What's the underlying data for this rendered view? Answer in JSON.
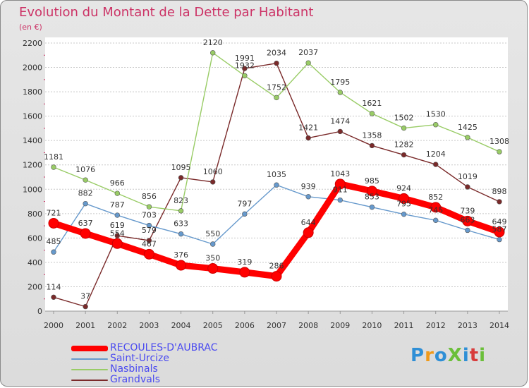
{
  "title": "Evolution du Montant de la Dette par Habitant",
  "subtitle": "(en €)",
  "logo": {
    "text": "ProXiti",
    "colors": [
      "#2f8fd6",
      "#f09a1a",
      "#2f8fd6",
      "#6bbf3a",
      "#2f8fd6",
      "#d83c3c",
      "#6bbf3a"
    ]
  },
  "chart_data": {
    "type": "line",
    "x": [
      "2000",
      "2001",
      "2002",
      "2003",
      "2004",
      "2005",
      "2006",
      "2007",
      "2008",
      "2009",
      "2010",
      "2011",
      "2012",
      "2013",
      "2014"
    ],
    "ylim": [
      0,
      2200
    ],
    "yticks": [
      0,
      200,
      400,
      600,
      800,
      1000,
      1200,
      1400,
      1600,
      1800,
      2000,
      2200
    ],
    "grid": true,
    "legend_position": "bottom",
    "series": [
      {
        "name": "RECOULES-D'AUBRAC",
        "color": "#ff0000",
        "values": [
          721,
          637,
          554,
          467,
          376,
          350,
          319,
          286,
          644,
          1043,
          985,
          924,
          852,
          739,
          649
        ],
        "labels": [
          "721",
          "637",
          "554",
          "467",
          "376",
          "350",
          "319",
          "286",
          "644",
          "1043",
          "985",
          "924",
          "852",
          "739",
          "649"
        ]
      },
      {
        "name": "Saint-Urcize",
        "color": "#6699cc",
        "values": [
          485,
          882,
          787,
          703,
          633,
          550,
          797,
          1035,
          939,
          911,
          853,
          795,
          745,
          663,
          587
        ],
        "labels": [
          "485",
          "882",
          "787",
          "703",
          "633",
          "550",
          "797",
          "1035",
          "939",
          "911",
          "853",
          "795",
          "745",
          "663",
          "587"
        ]
      },
      {
        "name": "Nasbinals",
        "color": "#99cc66",
        "values": [
          1181,
          1076,
          966,
          856,
          823,
          2120,
          1932,
          1752,
          2037,
          1795,
          1621,
          1502,
          1530,
          1425,
          1308
        ],
        "labels": [
          "1181",
          "1076",
          "966",
          "856",
          "823",
          "2120",
          "1932",
          "1752",
          "2037",
          "1795",
          "1621",
          "1502",
          "1530",
          "1425",
          "1308"
        ]
      },
      {
        "name": "Grandvals",
        "color": "#7a2a2a",
        "values": [
          114,
          37,
          619,
          579,
          1095,
          1060,
          1991,
          2034,
          1421,
          1474,
          1358,
          1282,
          1204,
          1019,
          898
        ],
        "labels": [
          "114",
          "37",
          "619",
          "579",
          "1095",
          "1060",
          "1991",
          "2034",
          "1421",
          "1474",
          "1358",
          "1282",
          "1204",
          "1019",
          "898"
        ]
      }
    ]
  }
}
